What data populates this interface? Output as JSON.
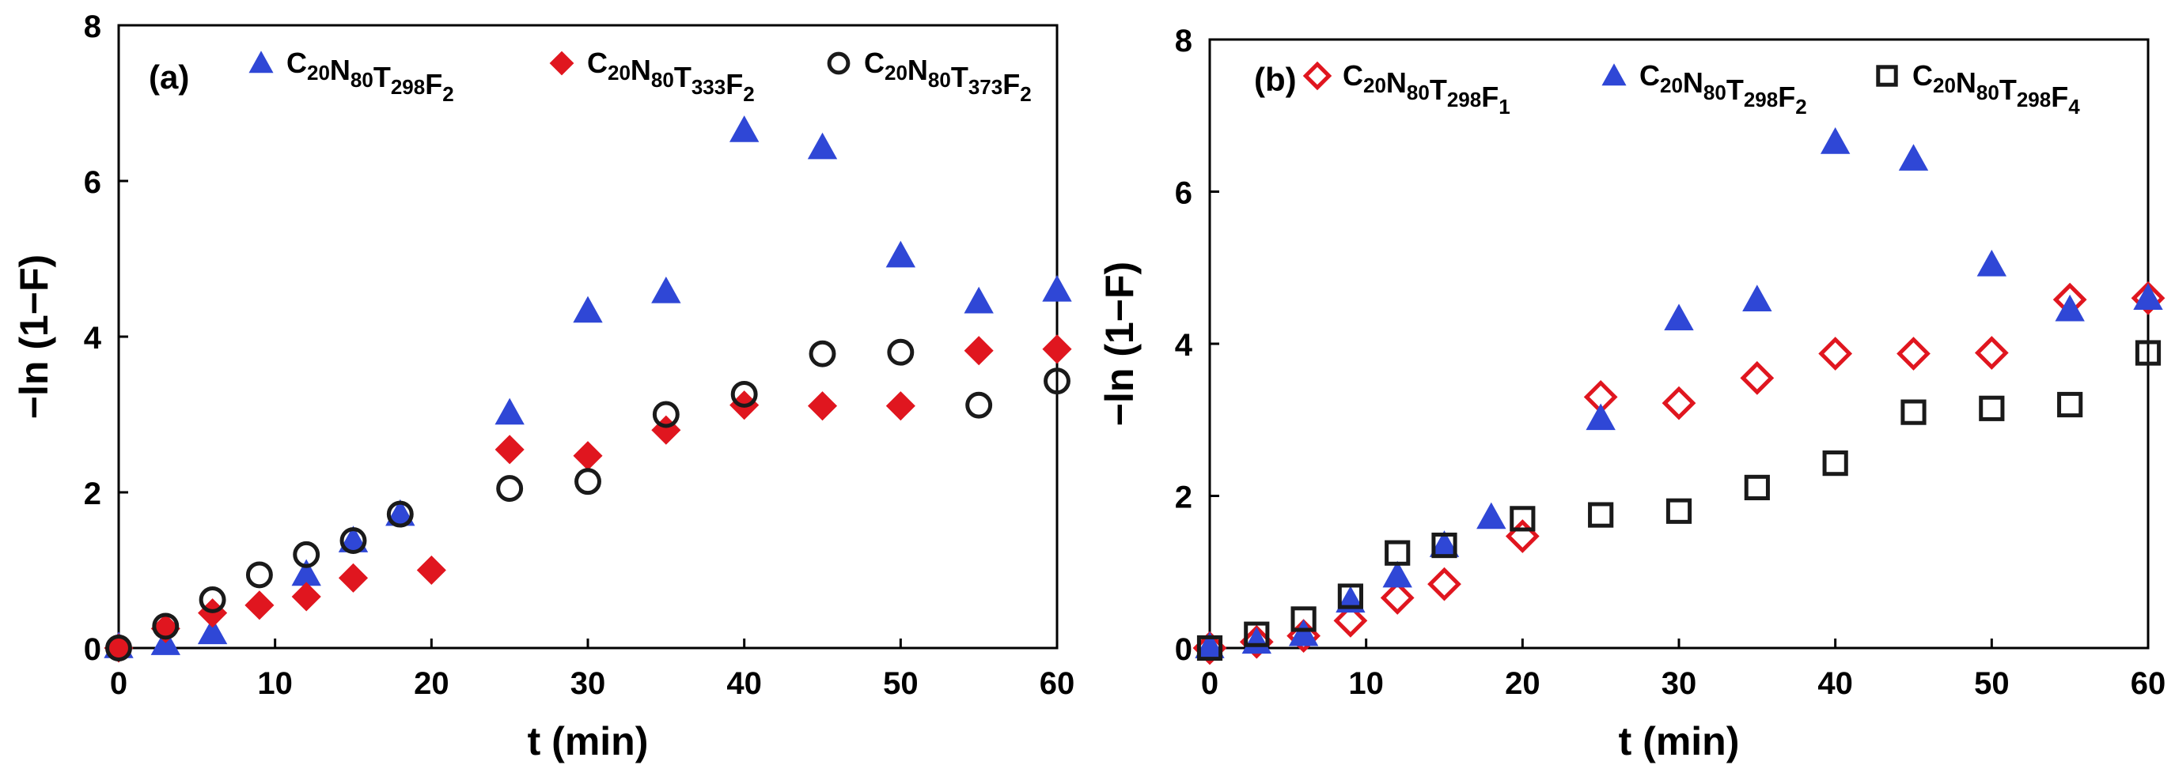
{
  "figure": {
    "panels": [
      "(a)",
      "(b)"
    ]
  },
  "chart_data": [
    {
      "type": "scatter",
      "panel_label": "(a)",
      "title": "",
      "xlabel": "t (min)",
      "ylabel": "−ln (1−F)",
      "xlim": [
        0,
        60
      ],
      "ylim": [
        0,
        8
      ],
      "xticks": [
        "0",
        "10",
        "20",
        "30",
        "40",
        "50",
        "60"
      ],
      "yticks": [
        "0",
        "2",
        "4",
        "6",
        "8"
      ],
      "legend_position": "top",
      "series": [
        {
          "legend": {
            "base": "C",
            "parts": [
              [
                "C",
                "20"
              ],
              [
                "N",
                "80"
              ],
              [
                "T",
                "298"
              ],
              [
                "F",
                "2"
              ]
            ]
          },
          "marker": "triangle",
          "color": "#2f47d6",
          "fill": true,
          "x": [
            0,
            3,
            6,
            12,
            15,
            18,
            25,
            30,
            35,
            40,
            45,
            50,
            55,
            60
          ],
          "y": [
            0.02,
            0.06,
            0.2,
            0.95,
            1.38,
            1.72,
            3.02,
            4.33,
            4.58,
            6.65,
            6.43,
            5.04,
            4.45,
            4.6
          ]
        },
        {
          "legend": {
            "base": "C",
            "parts": [
              [
                "C",
                "20"
              ],
              [
                "N",
                "80"
              ],
              [
                "T",
                "333"
              ],
              [
                "F",
                "2"
              ]
            ]
          },
          "marker": "diamond",
          "color": "#e0161f",
          "fill": true,
          "x": [
            0,
            3,
            6,
            9,
            12,
            15,
            20,
            25,
            30,
            35,
            40,
            45,
            50,
            55,
            60
          ],
          "y": [
            0.0,
            0.25,
            0.45,
            0.55,
            0.66,
            0.9,
            1.0,
            2.55,
            2.47,
            2.8,
            3.12,
            3.11,
            3.11,
            3.82,
            3.84
          ]
        },
        {
          "legend": {
            "base": "C",
            "parts": [
              [
                "C",
                "20"
              ],
              [
                "N",
                "80"
              ],
              [
                "T",
                "373"
              ],
              [
                "F",
                "2"
              ]
            ]
          },
          "marker": "circle",
          "color": "#1a1a1a",
          "fill": false,
          "x": [
            0,
            3,
            6,
            9,
            12,
            15,
            18,
            25,
            30,
            35,
            40,
            45,
            50,
            55,
            60
          ],
          "y": [
            0.0,
            0.28,
            0.62,
            0.94,
            1.2,
            1.38,
            1.72,
            2.05,
            2.14,
            3.0,
            3.26,
            3.78,
            3.8,
            3.12,
            3.43
          ]
        }
      ]
    },
    {
      "type": "scatter",
      "panel_label": "(b)",
      "title": "",
      "xlabel": "t (min)",
      "ylabel": "−ln (1−F)",
      "xlim": [
        0,
        60
      ],
      "ylim": [
        0,
        8
      ],
      "xticks": [
        "0",
        "10",
        "20",
        "30",
        "40",
        "50",
        "60"
      ],
      "yticks": [
        "0",
        "2",
        "4",
        "6",
        "8"
      ],
      "legend_position": "top",
      "series": [
        {
          "legend": {
            "base": "C",
            "parts": [
              [
                "C",
                "20"
              ],
              [
                "N",
                "80"
              ],
              [
                "T",
                "298"
              ],
              [
                "F",
                "1"
              ]
            ]
          },
          "marker": "diamond",
          "color": "#e0161f",
          "fill": false,
          "x": [
            0,
            3,
            6,
            9,
            12,
            15,
            20,
            25,
            30,
            35,
            40,
            45,
            50,
            55,
            60
          ],
          "y": [
            0.0,
            0.08,
            0.16,
            0.36,
            0.66,
            0.84,
            1.47,
            3.3,
            3.22,
            3.55,
            3.87,
            3.87,
            3.88,
            4.58,
            4.6
          ]
        },
        {
          "legend": {
            "base": "C",
            "parts": [
              [
                "C",
                "20"
              ],
              [
                "N",
                "80"
              ],
              [
                "T",
                "298"
              ],
              [
                "F",
                "2"
              ]
            ]
          },
          "marker": "triangle",
          "color": "#2f47d6",
          "fill": true,
          "x": [
            0,
            3,
            6,
            9,
            12,
            15,
            18,
            25,
            30,
            35,
            40,
            45,
            50,
            55,
            60
          ],
          "y": [
            0.02,
            0.08,
            0.18,
            0.62,
            0.95,
            1.35,
            1.72,
            3.02,
            4.33,
            4.58,
            6.65,
            6.43,
            5.04,
            4.45,
            4.6
          ]
        },
        {
          "legend": {
            "base": "C",
            "parts": [
              [
                "C",
                "20"
              ],
              [
                "N",
                "80"
              ],
              [
                "T",
                "298"
              ],
              [
                "F",
                "4"
              ]
            ]
          },
          "marker": "square",
          "color": "#1a1a1a",
          "fill": false,
          "x": [
            0,
            3,
            6,
            9,
            12,
            15,
            20,
            25,
            30,
            35,
            40,
            45,
            50,
            55,
            60
          ],
          "y": [
            0.0,
            0.18,
            0.38,
            0.68,
            1.25,
            1.35,
            1.7,
            1.75,
            1.8,
            2.11,
            2.43,
            3.1,
            3.15,
            3.2,
            3.88
          ]
        }
      ]
    }
  ]
}
